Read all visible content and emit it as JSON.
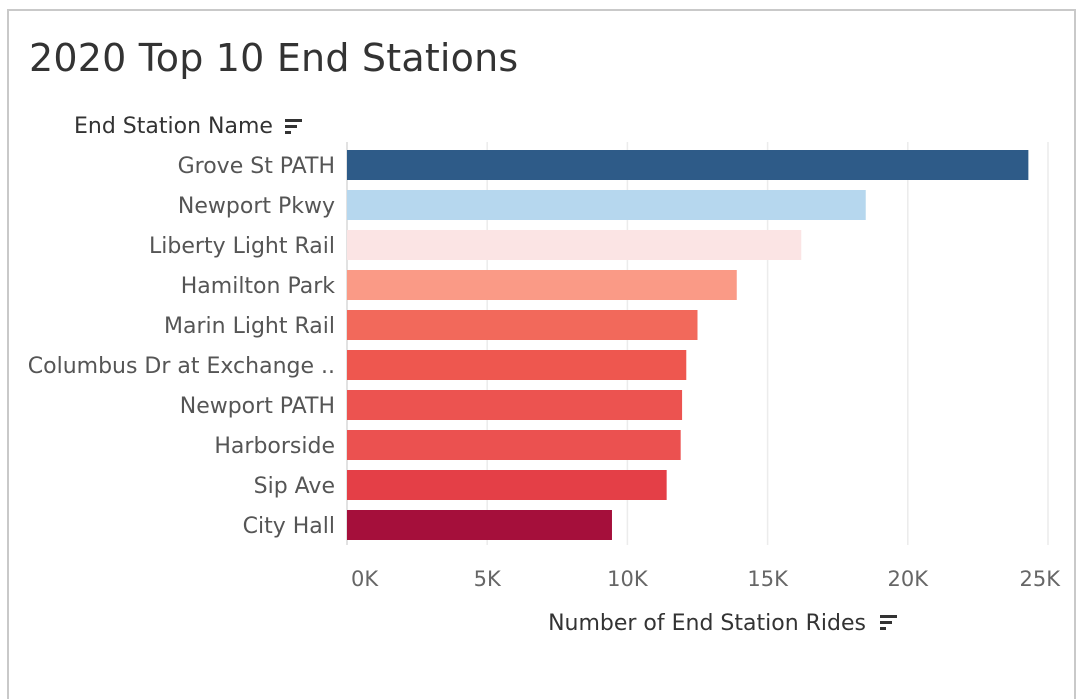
{
  "chart_data": {
    "type": "bar",
    "orientation": "horizontal",
    "title": "2020 Top 10 End Stations",
    "ylabel": "End Station Name",
    "xlabel": "Number of End Station Rides",
    "categories": [
      "Grove St PATH",
      "Newport Pkwy",
      "Liberty Light Rail",
      "Hamilton Park",
      "Marin Light Rail",
      "Columbus Dr at Exchange ..",
      "Newport PATH",
      "Harborside",
      "Sip Ave",
      "City Hall"
    ],
    "values": [
      24300,
      18500,
      16200,
      13900,
      12500,
      12100,
      11950,
      11900,
      11400,
      9450
    ],
    "bar_colors": [
      "#2e5b88",
      "#b6d7ee",
      "#fbe4e4",
      "#fa9a86",
      "#f2695b",
      "#ee574f",
      "#ec5350",
      "#eb5150",
      "#e43f47",
      "#a50f3b"
    ],
    "xlim": [
      0,
      25000
    ],
    "xticks": [
      0,
      5000,
      10000,
      15000,
      20000,
      25000
    ],
    "xtick_labels": [
      "0K",
      "5K",
      "10K",
      "15K",
      "20K",
      "25K"
    ],
    "grid": true,
    "legend": "none"
  },
  "icons": {
    "y_header_sort": "sort-descending-icon",
    "x_header_sort": "sort-descending-icon"
  }
}
